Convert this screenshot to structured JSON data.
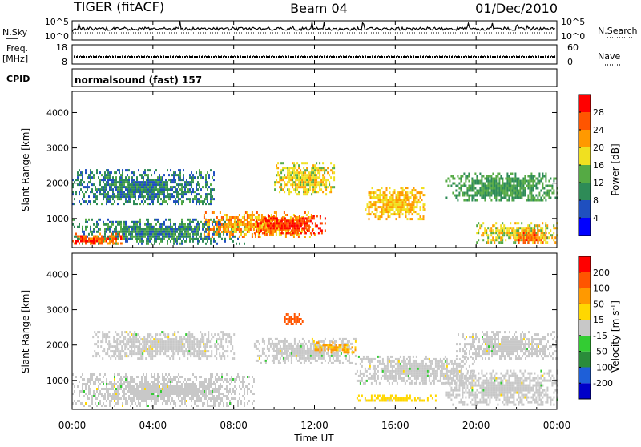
{
  "header": {
    "radar": "TIGER (fitACF)",
    "beam": "Beam 04",
    "date": "01/Dec/2010"
  },
  "left_labels": {
    "nsky": "N.Sky",
    "freq_line1": "Freq.",
    "freq_line2": "[MHz]",
    "cpid": "CPID"
  },
  "right_labels": {
    "nsearch": "N.Search",
    "nave": "Nave"
  },
  "noise_panel": {
    "left_ticks": [
      "10^5",
      "10^0"
    ],
    "right_ticks": [
      "10^5",
      "10^0"
    ]
  },
  "freq_panel": {
    "left_ticks": [
      "18",
      "8"
    ],
    "right_ticks": [
      "60",
      "0"
    ],
    "freq_mhz": 11.5,
    "nave": 24
  },
  "cpid_panel": {
    "text": "normalsound (fast) 157"
  },
  "x_axis": {
    "label": "Time UT",
    "ticks": [
      "00:00",
      "04:00",
      "08:00",
      "12:00",
      "16:00",
      "20:00",
      "00:00"
    ],
    "range_hours": [
      0,
      24
    ]
  },
  "colors": {
    "power": [
      "#0000ff",
      "#1f4fbf",
      "#2e8b57",
      "#55aa44",
      "#f0e020",
      "#ff9900",
      "#ff5500",
      "#ff0000"
    ],
    "velocity": [
      "#0000c8",
      "#1e5fd8",
      "#2a8c3a",
      "#33cc33",
      "#c8c8c8",
      "#ffd700",
      "#ff9900",
      "#ff5500",
      "#ff0000"
    ]
  },
  "chart_data": [
    {
      "type": "heatmap",
      "panel": "power",
      "ylabel": "Slant Range [km]",
      "ylim": [
        180,
        4600
      ],
      "y_ticks": [
        1000,
        2000,
        3000,
        4000
      ],
      "y_tick_labels": [
        "1000",
        "2000",
        "3000",
        "4000"
      ],
      "x": [
        "00:00",
        "04:00",
        "08:00",
        "12:00",
        "16:00",
        "20:00",
        "00:00"
      ],
      "colorbar": {
        "label": "Power [dB]",
        "tick_labels": [
          "4",
          "8",
          "12",
          "16",
          "20",
          "24",
          "28"
        ],
        "range": [
          0,
          32
        ]
      },
      "regions": [
        {
          "t": [
            0,
            8.5
          ],
          "range_km": [
            300,
            1000
          ],
          "value": 10
        },
        {
          "t": [
            0,
            2.5
          ],
          "range_km": [
            300,
            600
          ],
          "value": 26
        },
        {
          "t": [
            0,
            7
          ],
          "range_km": [
            1400,
            2400
          ],
          "value": 9
        },
        {
          "t": [
            6.5,
            12
          ],
          "range_km": [
            500,
            1200
          ],
          "value": 22
        },
        {
          "t": [
            9,
            12.5
          ],
          "range_km": [
            600,
            1100
          ],
          "value": 28
        },
        {
          "t": [
            10,
            13
          ],
          "range_km": [
            1700,
            2600
          ],
          "value": 18
        },
        {
          "t": [
            14.5,
            17.5
          ],
          "range_km": [
            1000,
            1900
          ],
          "value": 20
        },
        {
          "t": [
            18.5,
            24
          ],
          "range_km": [
            1500,
            2300
          ],
          "value": 12
        },
        {
          "t": [
            20,
            24
          ],
          "range_km": [
            300,
            900
          ],
          "value": 18
        },
        {
          "t": [
            22,
            23.5
          ],
          "range_km": [
            300,
            700
          ],
          "value": 25
        }
      ]
    },
    {
      "type": "heatmap",
      "panel": "velocity",
      "ylabel": "Slant Range [km]",
      "ylim": [
        180,
        4600
      ],
      "y_ticks": [
        1000,
        2000,
        3000,
        4000
      ],
      "y_tick_labels": [
        "1000",
        "2000",
        "3000",
        "4000"
      ],
      "x": [
        "00:00",
        "04:00",
        "08:00",
        "12:00",
        "16:00",
        "20:00",
        "00:00"
      ],
      "colorbar": {
        "label": "Velocity [m s^-1]",
        "tick_labels": [
          "200",
          "100",
          "50",
          "15",
          "-15",
          "-50",
          "-100",
          "-200"
        ],
        "range": [
          -250,
          250
        ]
      },
      "regions": [
        {
          "t": [
            0,
            9
          ],
          "range_km": [
            300,
            1200
          ],
          "value": 0
        },
        {
          "t": [
            1,
            8
          ],
          "range_km": [
            1600,
            2400
          ],
          "value": 0
        },
        {
          "t": [
            9,
            14
          ],
          "range_km": [
            1500,
            2200
          ],
          "value": 0
        },
        {
          "t": [
            14,
            20
          ],
          "range_km": [
            900,
            1700
          ],
          "value": 0
        },
        {
          "t": [
            18.5,
            24
          ],
          "range_km": [
            300,
            1300
          ],
          "value": 0
        },
        {
          "t": [
            19,
            24
          ],
          "range_km": [
            1600,
            2400
          ],
          "value": 0
        },
        {
          "t": [
            14,
            18
          ],
          "range_km": [
            400,
            600
          ],
          "value": 40
        },
        {
          "t": [
            10.5,
            11.5
          ],
          "range_km": [
            2600,
            2900
          ],
          "value": 180
        },
        {
          "t": [
            12,
            14
          ],
          "range_km": [
            1800,
            2100
          ],
          "value": 90
        }
      ]
    }
  ]
}
